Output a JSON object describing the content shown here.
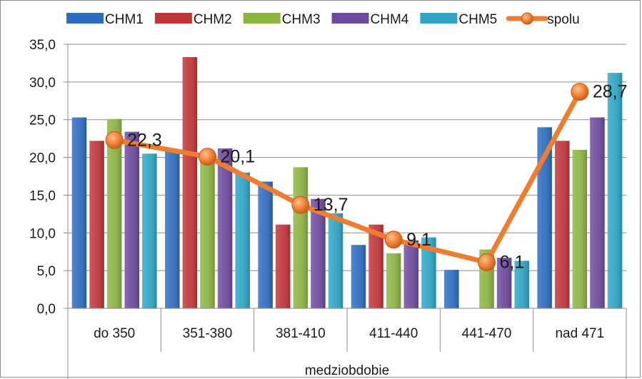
{
  "chart_data": {
    "type": "bar",
    "xlabel": "medziobdobie",
    "ylabel": "",
    "ylim": [
      0,
      35
    ],
    "y_ticks": [
      "0,0",
      "5,0",
      "10,0",
      "15,0",
      "20,0",
      "25,0",
      "30,0",
      "35,0"
    ],
    "grid": true,
    "legend_position": "top",
    "categories": [
      "do 350",
      "351-380",
      "381-410",
      "411-440",
      "441-470",
      "nad 471"
    ],
    "series": [
      {
        "name": "CHM1",
        "color": "#2e6cc0",
        "values": [
          25.3,
          20.9,
          16.8,
          8.4,
          5.1,
          24.0
        ]
      },
      {
        "name": "CHM2",
        "color": "#c0353a",
        "values": [
          22.2,
          33.3,
          11.1,
          11.1,
          0.0,
          22.2
        ]
      },
      {
        "name": "CHM3",
        "color": "#8cb443",
        "values": [
          25.1,
          19.8,
          18.7,
          7.3,
          7.8,
          21.0
        ]
      },
      {
        "name": "CHM4",
        "color": "#6e4a9e",
        "values": [
          23.4,
          21.2,
          14.5,
          9.0,
          6.7,
          25.3
        ]
      },
      {
        "name": "CHM5",
        "color": "#2ea5c4",
        "values": [
          20.5,
          18.0,
          12.6,
          9.4,
          6.3,
          31.2
        ]
      }
    ],
    "line_series": {
      "name": "spolu",
      "color": "#ed7d31",
      "values": [
        22.3,
        20.1,
        13.7,
        9.1,
        6.1,
        28.7
      ],
      "labels": [
        "22,3",
        "20,1",
        "13,7",
        "9,1",
        "6,1",
        "28,7"
      ]
    }
  }
}
